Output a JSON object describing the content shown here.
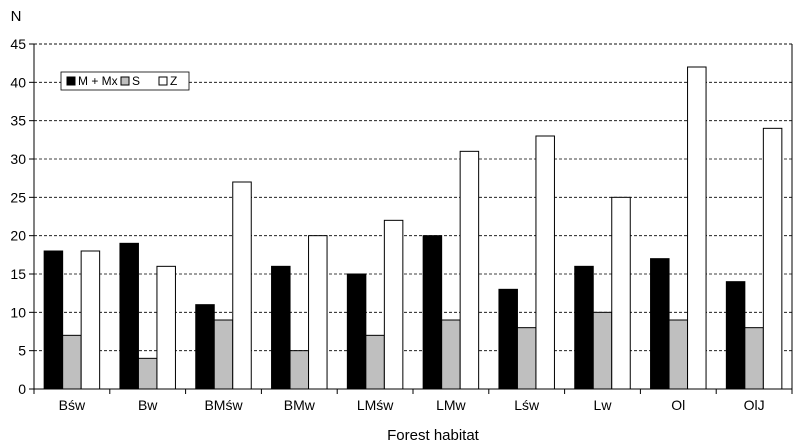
{
  "chart_data": {
    "type": "bar",
    "title": "",
    "xlabel": "Forest habitat",
    "ylabel": "N",
    "ylim": [
      0,
      45
    ],
    "yticks": [
      0,
      5,
      10,
      15,
      20,
      25,
      30,
      35,
      40,
      45
    ],
    "grid": "horizontal dashed",
    "legend_position": "top-left",
    "categories": [
      "Bśw",
      "Bw",
      "BMśw",
      "BMw",
      "LMśw",
      "LMw",
      "Lśw",
      "Lw",
      "Ol",
      "OlJ"
    ],
    "series": [
      {
        "name": "M + Mx",
        "color": "#000000",
        "values": [
          18,
          19,
          11,
          16,
          15,
          20,
          13,
          16,
          17,
          14
        ]
      },
      {
        "name": "S",
        "color": "#bfbfbf",
        "values": [
          7,
          4,
          9,
          5,
          7,
          9,
          8,
          10,
          9,
          8
        ]
      },
      {
        "name": "Z",
        "color": "#ffffff",
        "values": [
          18,
          16,
          27,
          20,
          22,
          31,
          33,
          25,
          42,
          34
        ]
      }
    ]
  }
}
